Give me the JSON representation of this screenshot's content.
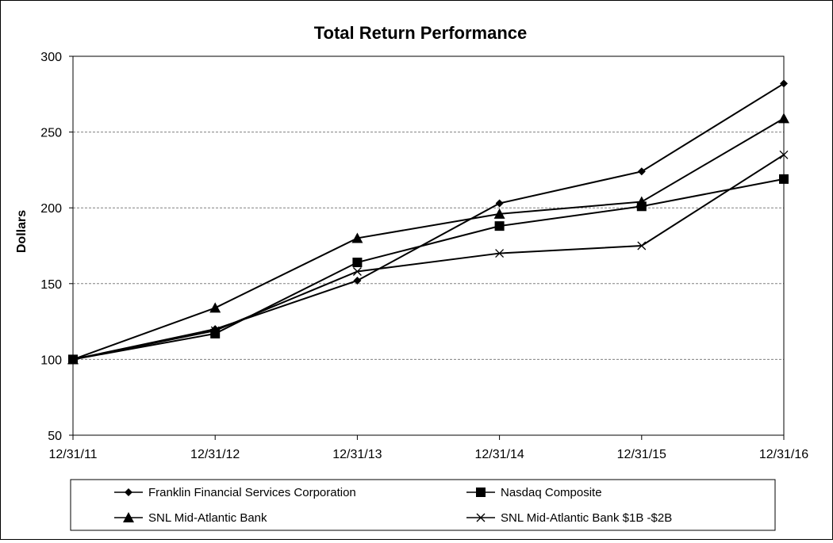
{
  "chart_data": {
    "type": "line",
    "title": "Total Return Performance",
    "xlabel": "",
    "ylabel": "Dollars",
    "categories": [
      "12/31/11",
      "12/31/12",
      "12/31/13",
      "12/31/14",
      "12/31/15",
      "12/31/16"
    ],
    "ylim": [
      50,
      300
    ],
    "yticks": [
      50,
      100,
      150,
      200,
      250,
      300
    ],
    "grid": "horizontal dashed",
    "legend_position": "bottom",
    "series": [
      {
        "name": "Franklin Financial Services Corporation",
        "marker": "diamond",
        "values": [
          100,
          120,
          152,
          203,
          224,
          282
        ]
      },
      {
        "name": "Nasdaq Composite",
        "marker": "square",
        "values": [
          100,
          117,
          164,
          188,
          201,
          219
        ]
      },
      {
        "name": "SNL Mid-Atlantic Bank",
        "marker": "triangle",
        "values": [
          100,
          134,
          180,
          196,
          204,
          259
        ]
      },
      {
        "name": "SNL Mid-Atlantic Bank $1B -$2B",
        "marker": "x",
        "values": [
          100,
          119,
          158,
          170,
          175,
          235
        ]
      }
    ],
    "line_color": "#000000"
  }
}
